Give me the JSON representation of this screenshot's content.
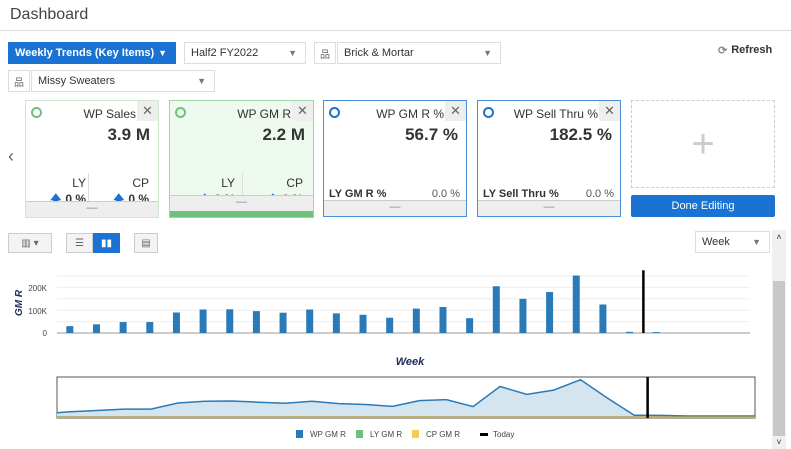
{
  "header": {
    "title": "Dashboard"
  },
  "filters": {
    "dashboard": "Weekly Trends (Key Items)",
    "period": "Half2 FY2022",
    "channel": "Brick & Mortar",
    "product": "Missy Sweaters",
    "refresh": "Refresh"
  },
  "tiles": [
    {
      "title": "WP Sales",
      "value": "3.9 M",
      "ly_label": "LY",
      "ly_value": "0 %",
      "cp_label": "CP",
      "cp_value": "0 %"
    },
    {
      "title": "WP GM R",
      "value": "2.2 M",
      "ly_label": "LY",
      "ly_value": "0 %",
      "cp_label": "CP",
      "cp_value": "0 %"
    },
    {
      "title": "WP GM R %",
      "value": "56.7 %",
      "row_label": "LY GM R %",
      "row_value": "0.0 %"
    },
    {
      "title": "WP Sell Thru %",
      "value": "182.5 %",
      "row_label": "LY Sell Thru %",
      "row_value": "0.0 %"
    }
  ],
  "add_tile": "+",
  "done_editing": "Done Editing",
  "chart_controls": {
    "granularity": "Week"
  },
  "chart_data": {
    "type": "bar",
    "ylabel": "GM R",
    "xlabel": "Week",
    "yticks": [
      "0",
      "100K",
      "200K"
    ],
    "ylim": [
      0,
      250000
    ],
    "grid": true,
    "today_index": 21.5,
    "series": [
      {
        "name": "WP GM R",
        "color": "#2a7ab8",
        "values": [
          30000,
          38000,
          48000,
          48000,
          90000,
          103000,
          104000,
          96000,
          89000,
          103000,
          86000,
          80000,
          67000,
          107000,
          114000,
          65000,
          205000,
          150000,
          180000,
          252000,
          125000,
          5000,
          4000,
          0,
          0,
          0
        ]
      },
      {
        "name": "LY GM R",
        "color": "#6cc17b",
        "values": []
      },
      {
        "name": "CP GM R",
        "color": "#f4cf4f",
        "values": []
      }
    ],
    "legend": [
      "WP GM R",
      "LY GM R",
      "CP GM R",
      "Today"
    ],
    "legend_position": "bottom"
  }
}
